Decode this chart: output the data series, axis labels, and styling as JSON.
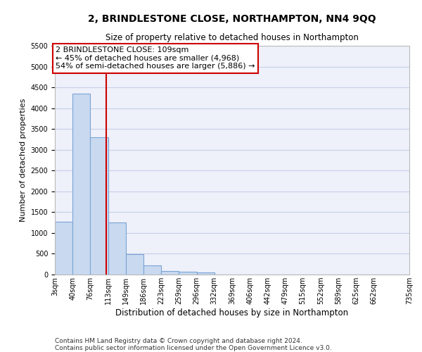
{
  "title1": "2, BRINDLESTONE CLOSE, NORTHAMPTON, NN4 9QQ",
  "title2": "Size of property relative to detached houses in Northampton",
  "xlabel": "Distribution of detached houses by size in Northampton",
  "ylabel": "Number of detached properties",
  "bar_values": [
    1270,
    4350,
    3300,
    1260,
    490,
    220,
    90,
    60,
    50,
    0,
    0,
    0,
    0,
    0,
    0,
    0,
    0,
    0,
    0
  ],
  "bin_edges": [
    3,
    40,
    76,
    113,
    149,
    186,
    223,
    259,
    296,
    332,
    369,
    406,
    442,
    479,
    515,
    552,
    589,
    625,
    662,
    735
  ],
  "tick_labels": [
    "3sqm",
    "40sqm",
    "76sqm",
    "113sqm",
    "149sqm",
    "186sqm",
    "223sqm",
    "259sqm",
    "296sqm",
    "332sqm",
    "369sqm",
    "406sqm",
    "442sqm",
    "479sqm",
    "515sqm",
    "552sqm",
    "589sqm",
    "625sqm",
    "662sqm",
    "735sqm"
  ],
  "bar_color": "#c9d9f0",
  "bar_edge_color": "#7aa4d4",
  "grid_color": "#c8d0e8",
  "bg_color": "#eef0fa",
  "vline_x": 109,
  "vline_color": "#cc0000",
  "annotation_text": "2 BRINDLESTONE CLOSE: 109sqm\n← 45% of detached houses are smaller (4,968)\n54% of semi-detached houses are larger (5,886) →",
  "annotation_box_color": "#ffffff",
  "annotation_box_edge": "#cc0000",
  "ylim": [
    0,
    5500
  ],
  "yticks": [
    0,
    500,
    1000,
    1500,
    2000,
    2500,
    3000,
    3500,
    4000,
    4500,
    5000,
    5500
  ],
  "footer1": "Contains HM Land Registry data © Crown copyright and database right 2024.",
  "footer2": "Contains public sector information licensed under the Open Government Licence v3.0.",
  "title1_fontsize": 10,
  "title2_fontsize": 8.5,
  "xlabel_fontsize": 8.5,
  "ylabel_fontsize": 8,
  "tick_fontsize": 7,
  "annotation_fontsize": 8,
  "footer_fontsize": 6.5
}
